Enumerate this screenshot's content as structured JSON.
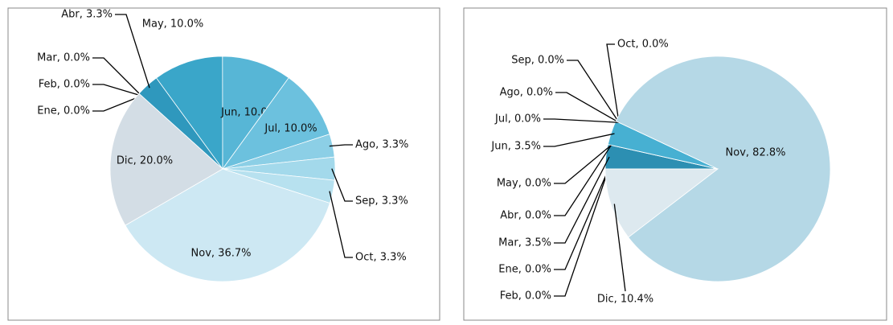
{
  "chart_data": [
    {
      "type": "pie",
      "values": [
        0.0,
        0.0,
        0.0,
        3.3,
        10.0,
        10.0,
        10.0,
        3.3,
        3.3,
        3.3,
        36.7,
        20.0
      ],
      "value_labels": [
        "Ene, 0.0%",
        "Feb, 0.0%",
        "Mar, 0.0%",
        "Abr, 3.3%",
        "May, 10.0%",
        "Jun, 10.0%",
        "Jul, 10.0%",
        "Ago, 3.3%",
        "Sep, 3.3%",
        "Oct, 3.3%",
        "Nov, 36.7%",
        "Dic, 20.0%"
      ],
      "colors": [
        "#1f7fa3",
        "#2587ab",
        "#2d90b3",
        "#2f98bd",
        "#3aa6c9",
        "#57b6d6",
        "#6cc1de",
        "#8ccfe6",
        "#a3d9eb",
        "#b7e1ef",
        "#cde8f3",
        "#d3dde5"
      ]
    },
    {
      "type": "pie",
      "values": [
        0.0,
        0.0,
        3.5,
        0.0,
        0.0,
        3.5,
        0.0,
        0.0,
        0.0,
        0.0,
        82.8,
        10.4
      ],
      "value_labels": [
        "Ene, 0.0%",
        "Feb, 0.0%",
        "Mar, 3.5%",
        "Abr, 0.0%",
        "May, 0.0%",
        "Jun, 3.5%",
        "Jul, 0.0%",
        "Ago, 0.0%",
        "Sep, 0.0%",
        "Oct, 0.0%",
        "Nov, 82.8%",
        "Dic, 10.4%"
      ],
      "colors": [
        "#1f7fa3",
        "#2587ab",
        "#2c8fb2",
        "#2f98bd",
        "#3aa6c9",
        "#47b0d2",
        "#6cc1de",
        "#8ccfe6",
        "#a3d9eb",
        "#b7e1ef",
        "#b5d8e6",
        "#dde9ef"
      ]
    }
  ]
}
